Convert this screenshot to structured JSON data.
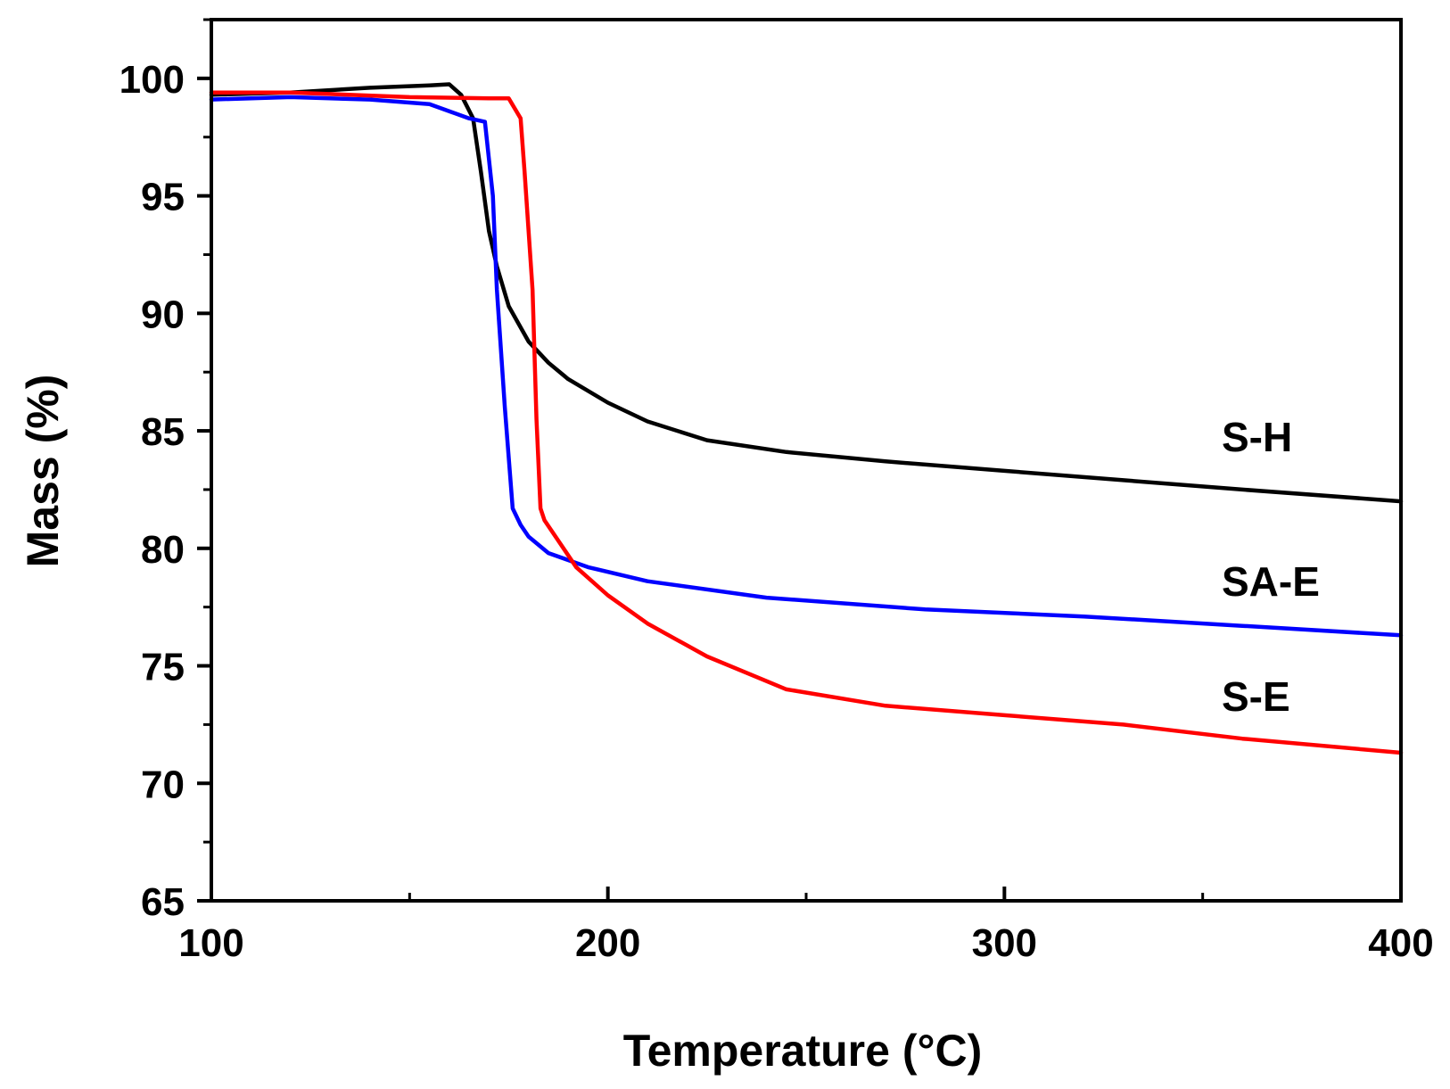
{
  "chart_data": {
    "type": "line",
    "title": "",
    "xlabel": "Temperature (°C)",
    "ylabel": "Mass (%)",
    "xlim": [
      100,
      400
    ],
    "ylim": [
      65,
      102.5
    ],
    "x_ticks": [
      100,
      200,
      300,
      400
    ],
    "x_tick_labels": [
      "100",
      "200",
      "300",
      "400"
    ],
    "x_minor_ticks": [
      150,
      250,
      350
    ],
    "y_ticks": [
      65,
      70,
      75,
      80,
      85,
      90,
      95,
      100
    ],
    "y_tick_labels": [
      "65",
      "70",
      "75",
      "80",
      "85",
      "90",
      "95",
      "100"
    ],
    "y_minor_ticks": [
      67.5,
      72.5,
      77.5,
      82.5,
      87.5,
      92.5,
      97.5,
      102.5
    ],
    "grid": false,
    "legend": "none (series labelled inline on the right)",
    "series": [
      {
        "name": "S-H",
        "label": "S-H",
        "color": "#000000",
        "x": [
          100,
          120,
          140,
          155,
          160,
          163,
          166,
          168,
          170,
          172,
          175,
          180,
          185,
          190,
          200,
          210,
          225,
          245,
          270,
          300,
          330,
          360,
          400
        ],
        "y": [
          99.3,
          99.4,
          99.6,
          99.7,
          99.75,
          99.3,
          98.3,
          96.0,
          93.5,
          92.0,
          90.3,
          88.8,
          87.9,
          87.2,
          86.2,
          85.4,
          84.6,
          84.1,
          83.7,
          83.3,
          82.9,
          82.5,
          82.0
        ]
      },
      {
        "name": "SA-E",
        "label": "SA-E",
        "color": "#0000ff",
        "x": [
          100,
          120,
          140,
          155,
          160,
          165,
          169,
          171,
          172,
          174,
          176,
          178,
          180,
          185,
          195,
          210,
          240,
          280,
          320,
          360,
          400
        ],
        "y": [
          99.1,
          99.2,
          99.1,
          98.9,
          98.6,
          98.3,
          98.15,
          95.0,
          91.0,
          86.0,
          81.7,
          81.0,
          80.5,
          79.8,
          79.2,
          78.6,
          77.9,
          77.4,
          77.1,
          76.7,
          76.3
        ]
      },
      {
        "name": "S-E",
        "label": "S-E",
        "color": "#ff0000",
        "x": [
          100,
          120,
          150,
          170,
          175,
          178,
          179,
          181,
          182,
          183,
          184,
          188,
          192,
          200,
          210,
          225,
          245,
          270,
          300,
          330,
          360,
          400
        ],
        "y": [
          99.4,
          99.4,
          99.2,
          99.15,
          99.15,
          98.3,
          96.0,
          91.0,
          85.5,
          81.7,
          81.2,
          80.2,
          79.2,
          78.0,
          76.8,
          75.4,
          74.0,
          73.3,
          72.9,
          72.5,
          71.9,
          71.3
        ]
      }
    ]
  }
}
